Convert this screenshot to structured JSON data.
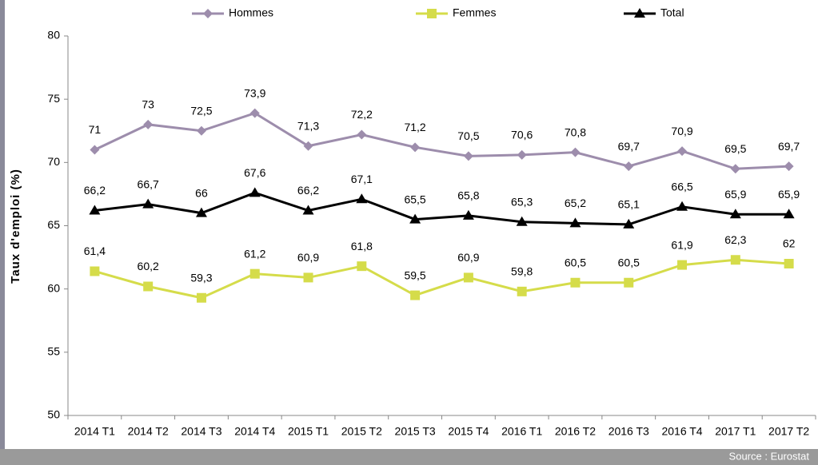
{
  "chart_data": {
    "type": "line",
    "y_axis_label": "Taux d'emploi (%)",
    "source": "Source : Eurostat",
    "categories": [
      "2014 T1",
      "2014 T2",
      "2014 T3",
      "2014 T4",
      "2015 T1",
      "2015 T2",
      "2015 T3",
      "2015 T4",
      "2016 T1",
      "2016 T2",
      "2016 T3",
      "2016 T4",
      "2017 T1",
      "2017 T2"
    ],
    "series": [
      {
        "name": "Hommes",
        "color": "#9d8dac",
        "marker": "diamond",
        "values": [
          71,
          73,
          72.5,
          73.9,
          71.3,
          72.2,
          71.2,
          70.5,
          70.6,
          70.8,
          69.7,
          70.9,
          69.5,
          69.7
        ],
        "value_labels": [
          "71",
          "73",
          "72,5",
          "73,9",
          "71,3",
          "72,2",
          "71,2",
          "70,5",
          "70,6",
          "70,8",
          "69,7",
          "70,9",
          "69,5",
          "69,7"
        ]
      },
      {
        "name": "Femmes",
        "color": "#d5dc4a",
        "marker": "square",
        "values": [
          61.4,
          60.2,
          59.3,
          61.2,
          60.9,
          61.8,
          59.5,
          60.9,
          59.8,
          60.5,
          60.5,
          61.9,
          62.3,
          62
        ],
        "value_labels": [
          "61,4",
          "60,2",
          "59,3",
          "61,2",
          "60,9",
          "61,8",
          "59,5",
          "60,9",
          "59,8",
          "60,5",
          "60,5",
          "61,9",
          "62,3",
          "62"
        ]
      },
      {
        "name": "Total",
        "color": "#000000",
        "marker": "triangle",
        "values": [
          66.2,
          66.7,
          66,
          67.6,
          66.2,
          67.1,
          65.5,
          65.8,
          65.3,
          65.2,
          65.1,
          66.5,
          65.9,
          65.9
        ],
        "value_labels": [
          "66,2",
          "66,7",
          "66",
          "67,6",
          "66,2",
          "67,1",
          "65,5",
          "65,8",
          "65,3",
          "65,2",
          "65,1",
          "66,5",
          "65,9",
          "65,9"
        ]
      }
    ],
    "ylim": [
      50,
      80
    ],
    "yticks": [
      50,
      55,
      60,
      65,
      70,
      75,
      80
    ],
    "legend": "top"
  }
}
